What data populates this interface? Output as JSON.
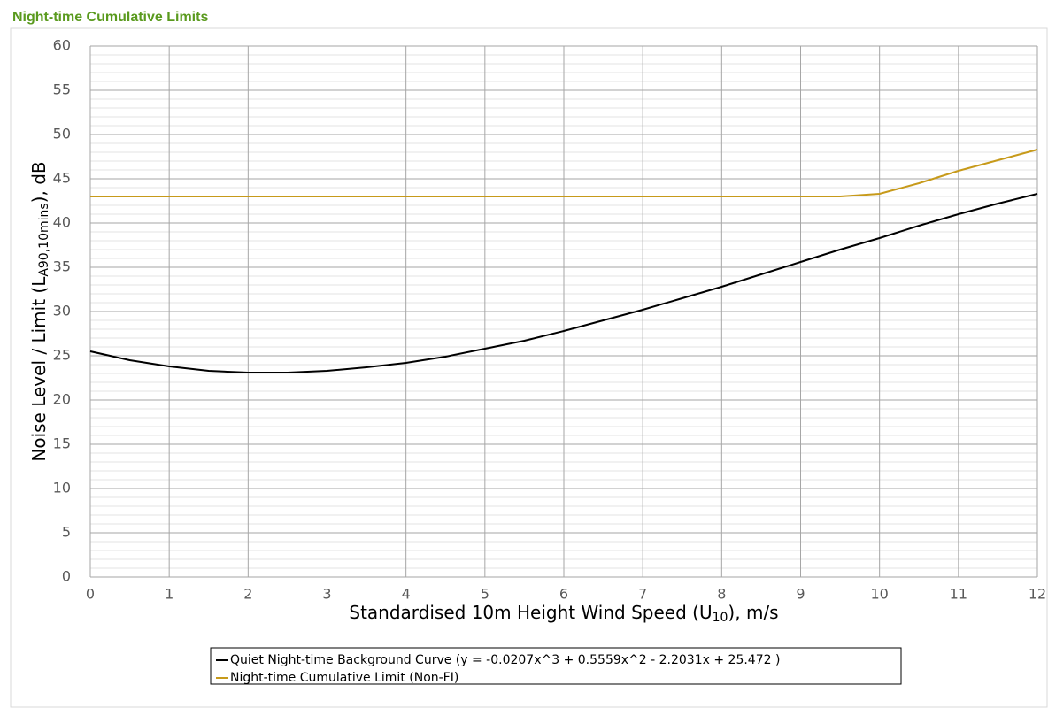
{
  "chart_data": {
    "type": "line",
    "title": "Night-time Cumulative Limits",
    "x_label": {
      "text": "Standardised 10m Height Wind Speed (U",
      "sub": "10",
      "suffix": "), m/s"
    },
    "y_label": {
      "text": "Noise Level / Limit (L",
      "sub": "A90,10mins",
      "suffix": "), dB"
    },
    "x": [
      0,
      0.5,
      1,
      1.5,
      2,
      2.5,
      3,
      3.5,
      4,
      4.5,
      5,
      5.5,
      6,
      6.5,
      7,
      7.5,
      8,
      8.5,
      9,
      9.5,
      10,
      10.5,
      11,
      11.5,
      12
    ],
    "series": [
      {
        "name": "Quiet Night-time Background Curve (y = -0.0207x^3 + 0.5559x^2 - 2.2031x + 25.472 )",
        "color": "#000000",
        "values": [
          25.5,
          24.5,
          23.8,
          23.3,
          23.1,
          23.1,
          23.3,
          23.7,
          24.2,
          24.9,
          25.8,
          26.7,
          27.8,
          29.0,
          30.2,
          31.5,
          32.8,
          34.2,
          35.6,
          37.0,
          38.3,
          39.7,
          41.0,
          42.2,
          43.3
        ]
      },
      {
        "name": "Night-time Cumulative Limit (Non-FI)",
        "color": "#c79a1a",
        "values": [
          43,
          43,
          43,
          43,
          43,
          43,
          43,
          43,
          43,
          43,
          43,
          43,
          43,
          43,
          43,
          43,
          43,
          43,
          43,
          43,
          43.3,
          44.5,
          45.9,
          47.1,
          48.3
        ]
      }
    ],
    "xlim": [
      0,
      12
    ],
    "xticks": [
      0,
      1,
      2,
      3,
      4,
      5,
      6,
      7,
      8,
      9,
      10,
      11,
      12
    ],
    "ylim": [
      0,
      60
    ],
    "yticks": [
      0,
      5,
      10,
      15,
      20,
      25,
      30,
      35,
      40,
      45,
      50,
      55,
      60
    ],
    "minor_grid_step": 1,
    "grid": true,
    "legend": "bottom"
  }
}
